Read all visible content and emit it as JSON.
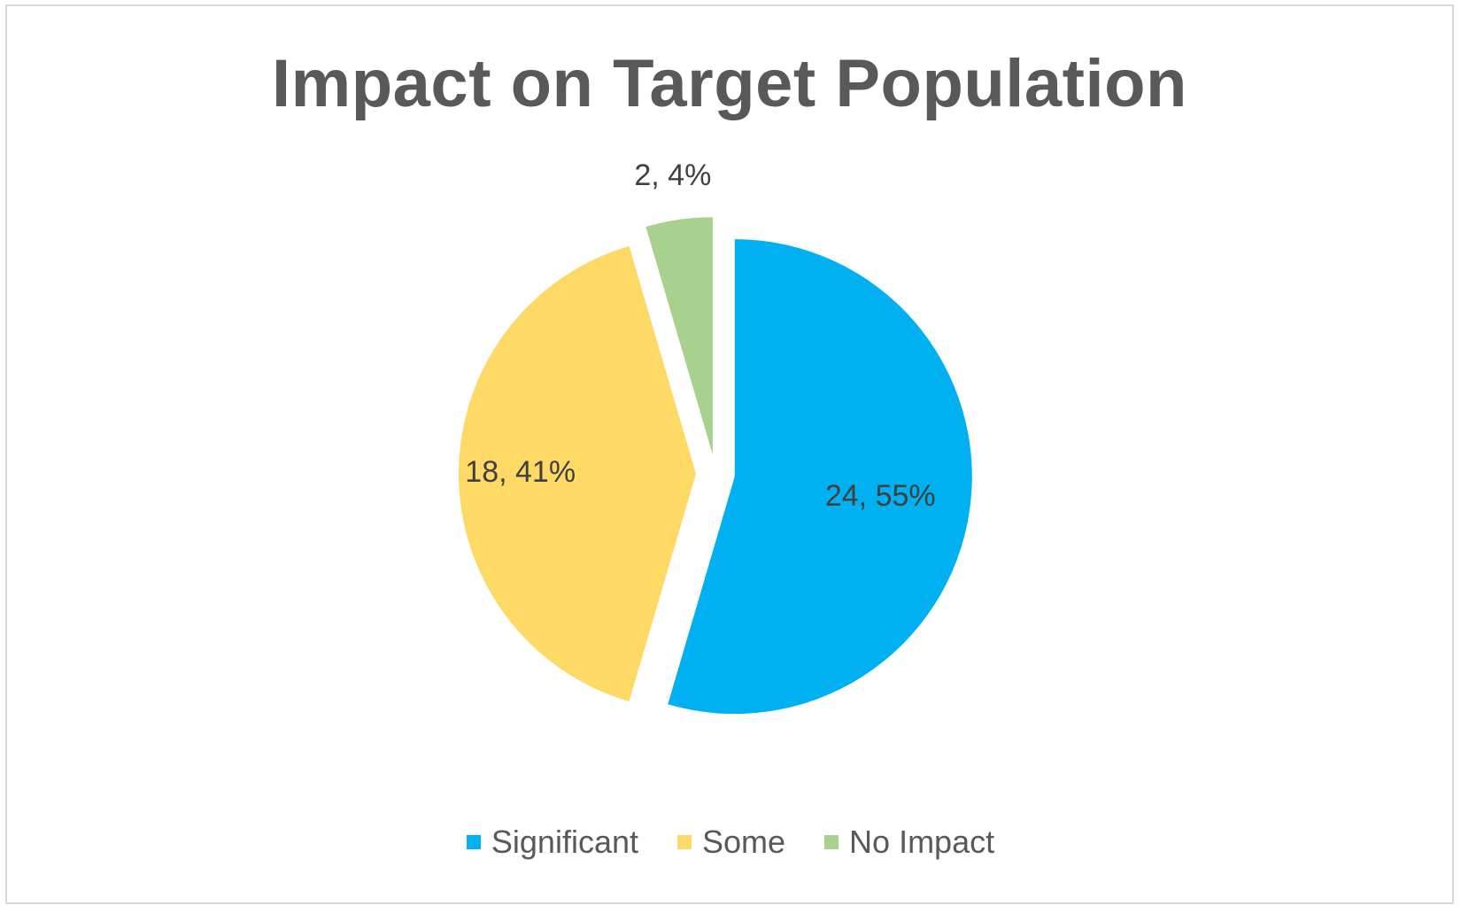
{
  "chart_data": {
    "type": "pie",
    "title": "Impact on Target Population",
    "categories": [
      "Significant",
      "Some",
      "No Impact"
    ],
    "values": [
      24,
      18,
      2
    ],
    "data_labels": [
      "24, 55%",
      "18, 41%",
      "2, 4%"
    ],
    "colors": [
      "#00b0f0",
      "#ffd966",
      "#a9d18e"
    ],
    "exploded": true,
    "legend_position": "bottom"
  }
}
